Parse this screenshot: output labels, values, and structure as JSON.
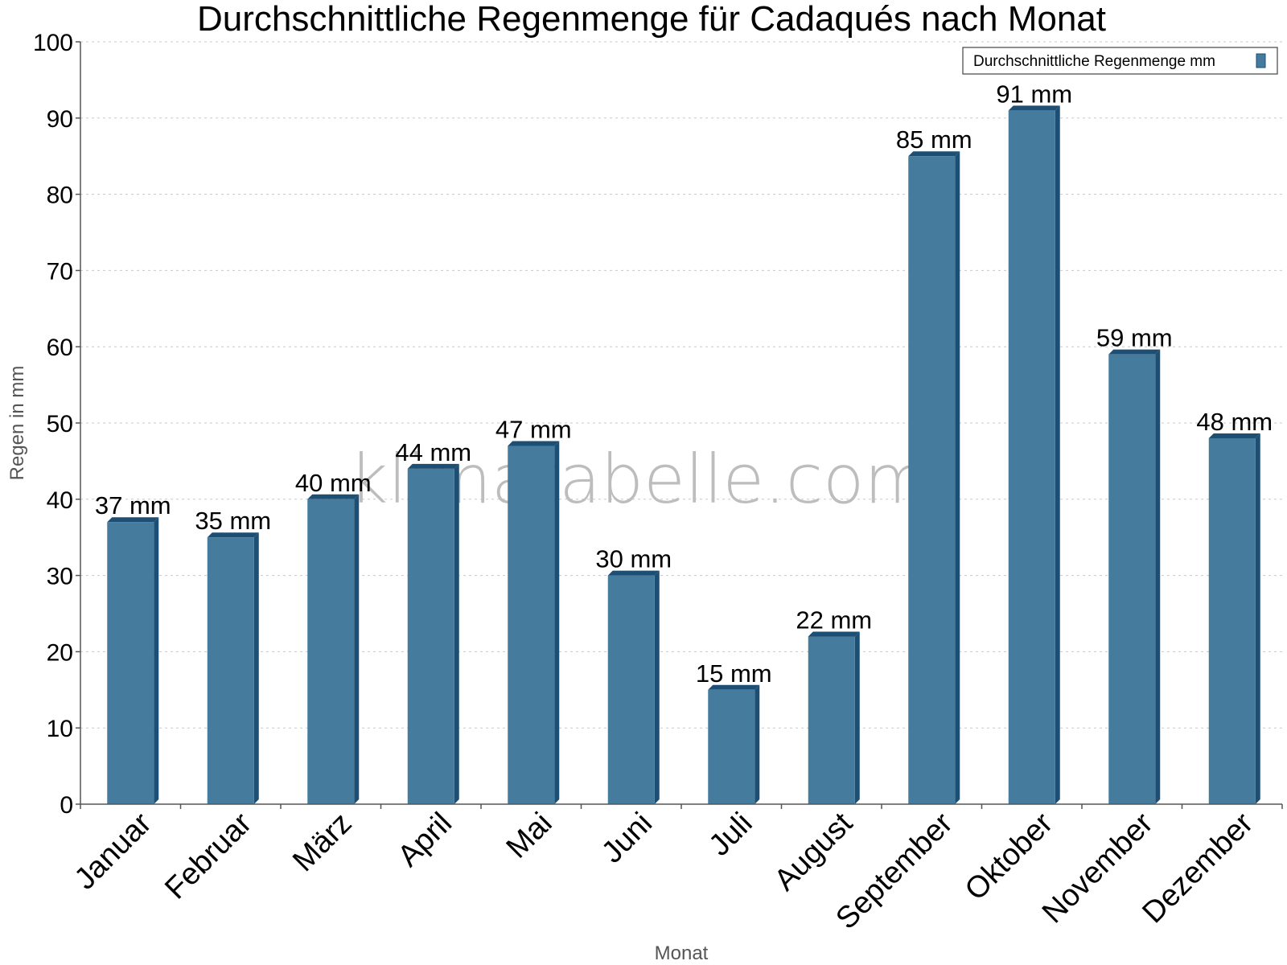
{
  "chart_data": {
    "type": "bar",
    "title": "Durchschnittliche Regenmenge für Cadaqués nach Monat",
    "xlabel": "Monat",
    "ylabel": "Regen in mm",
    "categories": [
      "Januar",
      "Februar",
      "März",
      "April",
      "Mai",
      "Juni",
      "Juli",
      "August",
      "September",
      "Oktober",
      "November",
      "Dezember"
    ],
    "series": [
      {
        "name": "Durchschnittliche Regenmenge mm",
        "values": [
          37,
          35,
          40,
          44,
          47,
          30,
          15,
          22,
          85,
          91,
          59,
          48
        ]
      }
    ],
    "data_labels": [
      "37 mm",
      "35 mm",
      "40 mm",
      "44 mm",
      "47 mm",
      "30 mm",
      "15 mm",
      "22 mm",
      "85 mm",
      "91 mm",
      "59 mm",
      "48 mm"
    ],
    "yticks": [
      "0",
      "10",
      "20",
      "30",
      "40",
      "50",
      "60",
      "70",
      "80",
      "90",
      "100"
    ],
    "ylim": [
      0,
      100
    ],
    "grid": true,
    "legend_position": "top-right",
    "watermark": "klimatabelle.com",
    "colors": {
      "bar": "#457b9d",
      "bar_side": "#1d4e73",
      "bar_top": "#1d4e73"
    }
  }
}
